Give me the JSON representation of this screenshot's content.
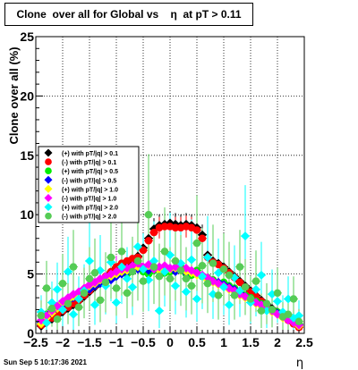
{
  "title": "Clone  over all for Global vs    η  at pT > 0.11",
  "datestamp": "Sun Sep  5 10:17:36 2021",
  "chart_data": {
    "type": "scatter",
    "title": "Clone  over all for Global vs    η  at pT > 0.11",
    "xlabel": "η",
    "ylabel": "Clone  over all (%)",
    "xlim": [
      -2.5,
      2.5
    ],
    "ylim": [
      0,
      25
    ],
    "x_ticks": [
      "−2.5",
      "−2",
      "−1.5",
      "−1",
      "−0.5",
      "0",
      "0.5",
      "1",
      "1.5",
      "2",
      "2.5"
    ],
    "y_ticks": [
      "0",
      "5",
      "10",
      "15",
      "20",
      "25"
    ],
    "grid": true,
    "legend_position": "center-left",
    "series": [
      {
        "name": "(+) with pT/|q| > 0.1",
        "color": "#000000",
        "marker": "diamond",
        "x": [
          -2.4,
          -2.3,
          -2.2,
          -2.1,
          -2.0,
          -1.9,
          -1.8,
          -1.7,
          -1.6,
          -1.5,
          -1.4,
          -1.3,
          -1.2,
          -1.1,
          -1.0,
          -0.9,
          -0.8,
          -0.7,
          -0.6,
          -0.5,
          -0.4,
          -0.3,
          -0.2,
          -0.1,
          0.0,
          0.1,
          0.2,
          0.3,
          0.4,
          0.5,
          0.6,
          0.7,
          0.8,
          0.9,
          1.0,
          1.1,
          1.2,
          1.3,
          1.4,
          1.5,
          1.6,
          1.7,
          1.8,
          1.9,
          2.0,
          2.1,
          2.2,
          2.3,
          2.4
        ],
        "y": [
          0.6,
          0.9,
          1.2,
          1.5,
          1.8,
          2.1,
          2.4,
          2.7,
          3.1,
          3.5,
          3.9,
          4.3,
          4.7,
          5.1,
          5.5,
          5.8,
          6.0,
          6.2,
          6.5,
          7.2,
          8.0,
          8.8,
          9.1,
          9.2,
          9.3,
          9.2,
          9.1,
          9.2,
          9.1,
          8.9,
          8.3,
          6.6,
          6.1,
          5.9,
          5.6,
          5.2,
          4.8,
          4.4,
          4.0,
          3.6,
          3.2,
          2.8,
          2.4,
          2.1,
          1.8,
          1.5,
          1.2,
          0.9,
          0.6
        ]
      },
      {
        "name": "(-) with pT/|q| > 0.1",
        "color": "#ff0000",
        "marker": "circle",
        "x": [
          -2.4,
          -2.3,
          -2.2,
          -2.1,
          -2.0,
          -1.9,
          -1.8,
          -1.7,
          -1.6,
          -1.5,
          -1.4,
          -1.3,
          -1.2,
          -1.1,
          -1.0,
          -0.9,
          -0.8,
          -0.7,
          -0.6,
          -0.5,
          -0.4,
          -0.3,
          -0.2,
          -0.1,
          0.0,
          0.1,
          0.2,
          0.3,
          0.4,
          0.5,
          0.6,
          0.7,
          0.8,
          0.9,
          1.0,
          1.1,
          1.2,
          1.3,
          1.4,
          1.5,
          1.6,
          1.7,
          1.8,
          1.9,
          2.0,
          2.1,
          2.2,
          2.3,
          2.4
        ],
        "y": [
          0.7,
          1.0,
          1.3,
          1.6,
          1.9,
          2.2,
          2.5,
          2.8,
          3.2,
          3.6,
          4.0,
          4.4,
          4.8,
          5.2,
          5.6,
          5.9,
          6.1,
          6.3,
          6.4,
          7.0,
          7.8,
          8.5,
          8.9,
          9.0,
          9.0,
          8.9,
          8.9,
          9.0,
          8.9,
          8.7,
          8.0,
          6.4,
          6.0,
          5.8,
          5.5,
          5.1,
          4.7,
          4.3,
          3.9,
          3.5,
          3.1,
          2.7,
          2.3,
          2.0,
          1.7,
          1.4,
          1.1,
          0.8,
          0.5
        ]
      },
      {
        "name": "(+) with pT/|q| > 0.5",
        "color": "#00ee00",
        "marker": "circle",
        "x": [
          -2.4,
          -2.3,
          -2.2,
          -2.1,
          -2.0,
          -1.9,
          -1.8,
          -1.7,
          -1.6,
          -1.5,
          -1.4,
          -1.3,
          -1.2,
          -1.1,
          -1.0,
          -0.9,
          -0.8,
          -0.7,
          -0.6,
          -0.5,
          -0.4,
          -0.3,
          -0.2,
          -0.1,
          0.0,
          0.1,
          0.2,
          0.3,
          0.4,
          0.5,
          0.6,
          0.7,
          0.8,
          0.9,
          1.0,
          1.1,
          1.2,
          1.3,
          1.4,
          1.5,
          1.6,
          1.7,
          1.8,
          1.9,
          2.0,
          2.1,
          2.2,
          2.3,
          2.4
        ],
        "y": [
          1.0,
          1.6,
          2.0,
          2.3,
          2.5,
          2.9,
          3.2,
          3.4,
          3.6,
          3.9,
          4.1,
          4.4,
          4.3,
          4.6,
          4.9,
          5.1,
          5.0,
          5.4,
          5.6,
          5.2,
          5.0,
          5.3,
          5.5,
          5.1,
          5.2,
          5.4,
          5.6,
          5.0,
          4.9,
          5.3,
          4.8,
          4.7,
          4.5,
          4.2,
          4.3,
          4.0,
          3.8,
          3.5,
          3.2,
          3.0,
          2.7,
          2.5,
          2.2,
          2.0,
          1.8,
          1.5,
          1.3,
          1.0,
          0.8
        ]
      },
      {
        "name": "(-) with pT/|q| > 0.5",
        "color": "#0000ff",
        "marker": "diamond",
        "x": [
          -2.4,
          -2.3,
          -2.2,
          -2.1,
          -2.0,
          -1.9,
          -1.8,
          -1.7,
          -1.6,
          -1.5,
          -1.4,
          -1.3,
          -1.2,
          -1.1,
          -1.0,
          -0.9,
          -0.8,
          -0.7,
          -0.6,
          -0.5,
          -0.4,
          -0.3,
          -0.2,
          -0.1,
          0.0,
          0.1,
          0.2,
          0.3,
          0.4,
          0.5,
          0.6,
          0.7,
          0.8,
          0.9,
          1.0,
          1.1,
          1.2,
          1.3,
          1.4,
          1.5,
          1.6,
          1.7,
          1.8,
          1.9,
          2.0,
          2.1,
          2.2,
          2.3,
          2.4
        ],
        "y": [
          0.9,
          1.4,
          1.8,
          2.2,
          2.4,
          2.7,
          3.0,
          3.3,
          3.5,
          3.7,
          4.0,
          4.2,
          4.4,
          4.5,
          4.8,
          5.0,
          5.2,
          5.3,
          5.4,
          5.5,
          5.3,
          5.6,
          5.4,
          5.3,
          5.5,
          5.2,
          5.4,
          5.1,
          5.2,
          5.0,
          4.9,
          4.6,
          4.4,
          4.3,
          4.1,
          3.9,
          3.7,
          3.4,
          3.1,
          2.9,
          2.6,
          2.4,
          2.1,
          1.9,
          1.7,
          1.4,
          1.2,
          0.9,
          0.7
        ]
      },
      {
        "name": "(+) with pT/|q| > 1.0",
        "color": "#ffff00",
        "marker": "diamond",
        "x": [
          -2.4,
          -2.3,
          -2.2,
          -2.1,
          -2.0,
          -1.9,
          -1.8,
          -1.7,
          -1.6,
          -1.5,
          -1.4,
          -1.3,
          -1.2,
          -1.1,
          -1.0,
          -0.9,
          -0.8,
          -0.7,
          -0.6,
          -0.5,
          -0.4,
          -0.3,
          -0.2,
          -0.1,
          0.0,
          0.1,
          0.2,
          0.3,
          0.4,
          0.5,
          0.6,
          0.7,
          0.8,
          0.9,
          1.0,
          1.1,
          1.2,
          1.3,
          1.4,
          1.5,
          1.6,
          1.7,
          1.8,
          1.9,
          2.0,
          2.1,
          2.2,
          2.3,
          2.4
        ],
        "y": [
          0.8,
          1.3,
          1.7,
          2.1,
          2.6,
          2.8,
          3.1,
          3.4,
          3.7,
          4.0,
          4.2,
          4.5,
          4.7,
          4.8,
          5.0,
          5.2,
          5.3,
          5.5,
          5.6,
          5.4,
          5.7,
          5.5,
          5.3,
          5.6,
          5.4,
          5.5,
          5.3,
          5.2,
          5.1,
          4.9,
          4.8,
          4.5,
          4.3,
          4.1,
          3.9,
          3.7,
          3.5,
          3.2,
          3.0,
          2.8,
          2.5,
          2.3,
          2.0,
          1.8,
          1.6,
          1.3,
          1.1,
          0.9,
          0.6
        ]
      },
      {
        "name": "(-) with pT/|q| > 1.0",
        "color": "#ff00ff",
        "marker": "diamond",
        "x": [
          -2.4,
          -2.3,
          -2.2,
          -2.1,
          -2.0,
          -1.9,
          -1.8,
          -1.7,
          -1.6,
          -1.5,
          -1.4,
          -1.3,
          -1.2,
          -1.1,
          -1.0,
          -0.9,
          -0.8,
          -0.7,
          -0.6,
          -0.5,
          -0.4,
          -0.3,
          -0.2,
          -0.1,
          0.0,
          0.1,
          0.2,
          0.3,
          0.4,
          0.5,
          0.6,
          0.7,
          0.8,
          0.9,
          1.0,
          1.1,
          1.2,
          1.3,
          1.4,
          1.5,
          1.6,
          1.7,
          1.8,
          1.9,
          2.0,
          2.1,
          2.2,
          2.3,
          2.4
        ],
        "y": [
          1.1,
          1.5,
          1.9,
          2.3,
          2.7,
          3.0,
          3.3,
          3.5,
          3.8,
          4.1,
          4.3,
          4.6,
          4.8,
          5.0,
          5.2,
          5.4,
          5.5,
          5.7,
          5.9,
          5.6,
          5.8,
          5.4,
          5.6,
          5.7,
          5.5,
          5.6,
          5.4,
          5.5,
          5.3,
          5.1,
          4.9,
          4.7,
          4.4,
          4.2,
          4.0,
          3.8,
          3.6,
          3.3,
          3.1,
          2.9,
          2.6,
          2.4,
          2.1,
          1.9,
          1.6,
          1.4,
          1.1,
          0.9,
          0.7
        ]
      },
      {
        "name": "(+) with pT/|q| > 2.0",
        "color": "#00ffff",
        "marker": "diamond",
        "x": [
          -2.4,
          -2.3,
          -2.2,
          -2.1,
          -2.0,
          -1.9,
          -1.8,
          -1.7,
          -1.6,
          -1.5,
          -1.4,
          -1.3,
          -1.2,
          -1.1,
          -1.0,
          -0.9,
          -0.8,
          -0.7,
          -0.6,
          -0.5,
          -0.4,
          -0.3,
          -0.2,
          -0.1,
          0.0,
          0.1,
          0.2,
          0.3,
          0.4,
          0.5,
          0.6,
          0.7,
          0.8,
          0.9,
          1.0,
          1.1,
          1.2,
          1.3,
          1.4,
          1.5,
          1.6,
          1.7,
          1.8,
          1.9,
          2.0,
          2.1,
          2.2,
          2.3,
          2.4
        ],
        "y": [
          1.8,
          0.9,
          2.6,
          3.7,
          2.0,
          5.2,
          1.6,
          2.9,
          3.6,
          6.1,
          2.4,
          5.3,
          4.0,
          6.0,
          2.6,
          5.6,
          4.6,
          3.9,
          7.3,
          5.4,
          4.5,
          6.1,
          1.9,
          5.2,
          6.6,
          4.0,
          5.9,
          3.5,
          6.2,
          2.9,
          4.8,
          6.4,
          3.3,
          5.1,
          3.9,
          2.4,
          4.7,
          3.6,
          8.2,
          2.6,
          3.7,
          4.9,
          1.9,
          3.3,
          2.7,
          1.8,
          2.9,
          1.3,
          1.5
        ]
      },
      {
        "name": "(-) with pT/|q| > 2.0",
        "color": "#55cc55",
        "marker": "circle",
        "x": [
          -2.4,
          -2.3,
          -2.2,
          -2.1,
          -2.0,
          -1.9,
          -1.8,
          -1.7,
          -1.6,
          -1.5,
          -1.4,
          -1.3,
          -1.2,
          -1.1,
          -1.0,
          -0.9,
          -0.8,
          -0.7,
          -0.6,
          -0.5,
          -0.4,
          -0.3,
          -0.2,
          -0.1,
          0.0,
          0.1,
          0.2,
          0.3,
          0.4,
          0.5,
          0.6,
          0.7,
          0.8,
          0.9,
          1.0,
          1.1,
          1.2,
          1.3,
          1.4,
          1.5,
          1.6,
          1.7,
          1.8,
          1.9,
          2.0,
          2.1,
          2.2,
          2.3,
          2.4
        ],
        "y": [
          1.5,
          3.8,
          2.1,
          1.2,
          4.2,
          2.5,
          5.6,
          2.2,
          3.4,
          4.6,
          5.1,
          2.8,
          4.3,
          6.4,
          3.8,
          6.9,
          3.4,
          5.2,
          6.1,
          4.4,
          10.0,
          5.6,
          4.8,
          6.9,
          4.6,
          6.1,
          5.3,
          4.6,
          4.0,
          7.6,
          5.7,
          4.2,
          5.9,
          3.2,
          5.4,
          4.9,
          3.2,
          5.6,
          3.9,
          2.9,
          4.4,
          1.9,
          2.5,
          2.0,
          3.4,
          1.4,
          1.6,
          2.9,
          1.0
        ]
      }
    ]
  }
}
